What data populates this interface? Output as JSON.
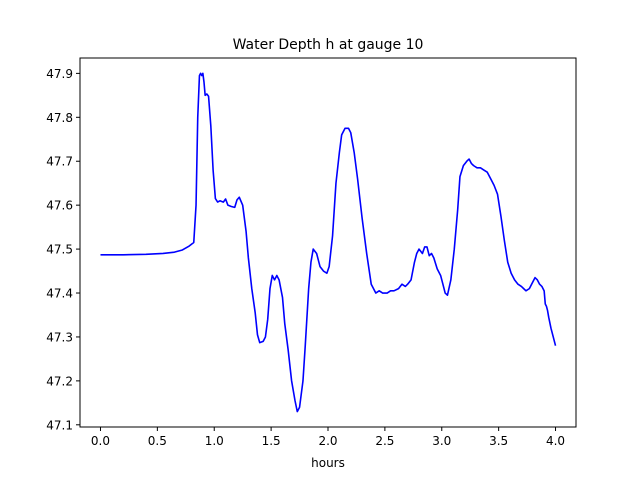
{
  "chart_data": {
    "type": "line",
    "title": "Water Depth h at gauge 10",
    "xlabel": "hours",
    "ylabel": "",
    "xlim": [
      -0.18,
      4.18
    ],
    "ylim": [
      47.095,
      47.935
    ],
    "x_ticks": [
      0.0,
      0.5,
      1.0,
      1.5,
      2.0,
      2.5,
      3.0,
      3.5,
      4.0
    ],
    "x_tick_labels": [
      "0.0",
      "0.5",
      "1.0",
      "1.5",
      "2.0",
      "2.5",
      "3.0",
      "3.5",
      "4.0"
    ],
    "y_ticks": [
      47.1,
      47.2,
      47.3,
      47.4,
      47.5,
      47.6,
      47.7,
      47.8,
      47.9
    ],
    "y_tick_labels": [
      "47.1",
      "47.2",
      "47.3",
      "47.4",
      "47.5",
      "47.6",
      "47.7",
      "47.8",
      "47.9"
    ],
    "grid": false,
    "series": [
      {
        "color": "#0000ff",
        "x": [
          0.0,
          0.2,
          0.4,
          0.55,
          0.65,
          0.72,
          0.78,
          0.82,
          0.84,
          0.855,
          0.87,
          0.88,
          0.89,
          0.9,
          0.91,
          0.92,
          0.935,
          0.95,
          0.97,
          0.99,
          1.01,
          1.03,
          1.05,
          1.08,
          1.1,
          1.12,
          1.15,
          1.18,
          1.2,
          1.22,
          1.25,
          1.28,
          1.3,
          1.33,
          1.36,
          1.38,
          1.4,
          1.43,
          1.45,
          1.47,
          1.49,
          1.51,
          1.53,
          1.55,
          1.57,
          1.6,
          1.62,
          1.65,
          1.68,
          1.71,
          1.73,
          1.75,
          1.78,
          1.8,
          1.83,
          1.85,
          1.87,
          1.9,
          1.93,
          1.96,
          1.99,
          2.01,
          2.04,
          2.07,
          2.1,
          2.12,
          2.15,
          2.18,
          2.2,
          2.23,
          2.26,
          2.3,
          2.34,
          2.38,
          2.42,
          2.45,
          2.48,
          2.52,
          2.55,
          2.58,
          2.62,
          2.65,
          2.68,
          2.7,
          2.73,
          2.76,
          2.78,
          2.8,
          2.83,
          2.85,
          2.87,
          2.89,
          2.91,
          2.93,
          2.96,
          2.99,
          3.01,
          3.03,
          3.05,
          3.08,
          3.11,
          3.14,
          3.16,
          3.19,
          3.22,
          3.24,
          3.26,
          3.28,
          3.31,
          3.34,
          3.37,
          3.4,
          3.43,
          3.46,
          3.49,
          3.52,
          3.55,
          3.58,
          3.61,
          3.64,
          3.67,
          3.7,
          3.72,
          3.74,
          3.77,
          3.8,
          3.82,
          3.84,
          3.86,
          3.88,
          3.9,
          3.91,
          3.92,
          3.93,
          3.94,
          3.96,
          3.98,
          4.0
        ],
        "y": [
          47.487,
          47.487,
          47.488,
          47.49,
          47.493,
          47.498,
          47.507,
          47.515,
          47.6,
          47.8,
          47.895,
          47.9,
          47.895,
          47.9,
          47.88,
          47.85,
          47.853,
          47.848,
          47.78,
          47.68,
          47.615,
          47.607,
          47.61,
          47.607,
          47.614,
          47.6,
          47.597,
          47.595,
          47.612,
          47.618,
          47.6,
          47.54,
          47.48,
          47.41,
          47.355,
          47.305,
          47.287,
          47.29,
          47.3,
          47.34,
          47.41,
          47.44,
          47.43,
          47.44,
          47.43,
          47.39,
          47.33,
          47.27,
          47.2,
          47.155,
          47.13,
          47.14,
          47.2,
          47.28,
          47.41,
          47.47,
          47.5,
          47.49,
          47.46,
          47.45,
          47.445,
          47.46,
          47.53,
          47.65,
          47.72,
          47.76,
          47.775,
          47.775,
          47.765,
          47.72,
          47.66,
          47.57,
          47.49,
          47.42,
          47.4,
          47.405,
          47.4,
          47.4,
          47.405,
          47.405,
          47.41,
          47.42,
          47.415,
          47.42,
          47.43,
          47.47,
          47.49,
          47.5,
          47.49,
          47.505,
          47.505,
          47.485,
          47.49,
          47.48,
          47.455,
          47.44,
          47.42,
          47.4,
          47.395,
          47.43,
          47.5,
          47.59,
          47.665,
          47.69,
          47.7,
          47.705,
          47.695,
          47.69,
          47.685,
          47.685,
          47.68,
          47.675,
          47.66,
          47.645,
          47.625,
          47.575,
          47.52,
          47.47,
          47.445,
          47.43,
          47.42,
          47.415,
          47.41,
          47.405,
          47.41,
          47.425,
          47.435,
          47.43,
          47.42,
          47.415,
          47.405,
          47.375,
          47.37,
          47.36,
          47.345,
          47.32,
          47.3,
          47.28
        ]
      }
    ]
  }
}
